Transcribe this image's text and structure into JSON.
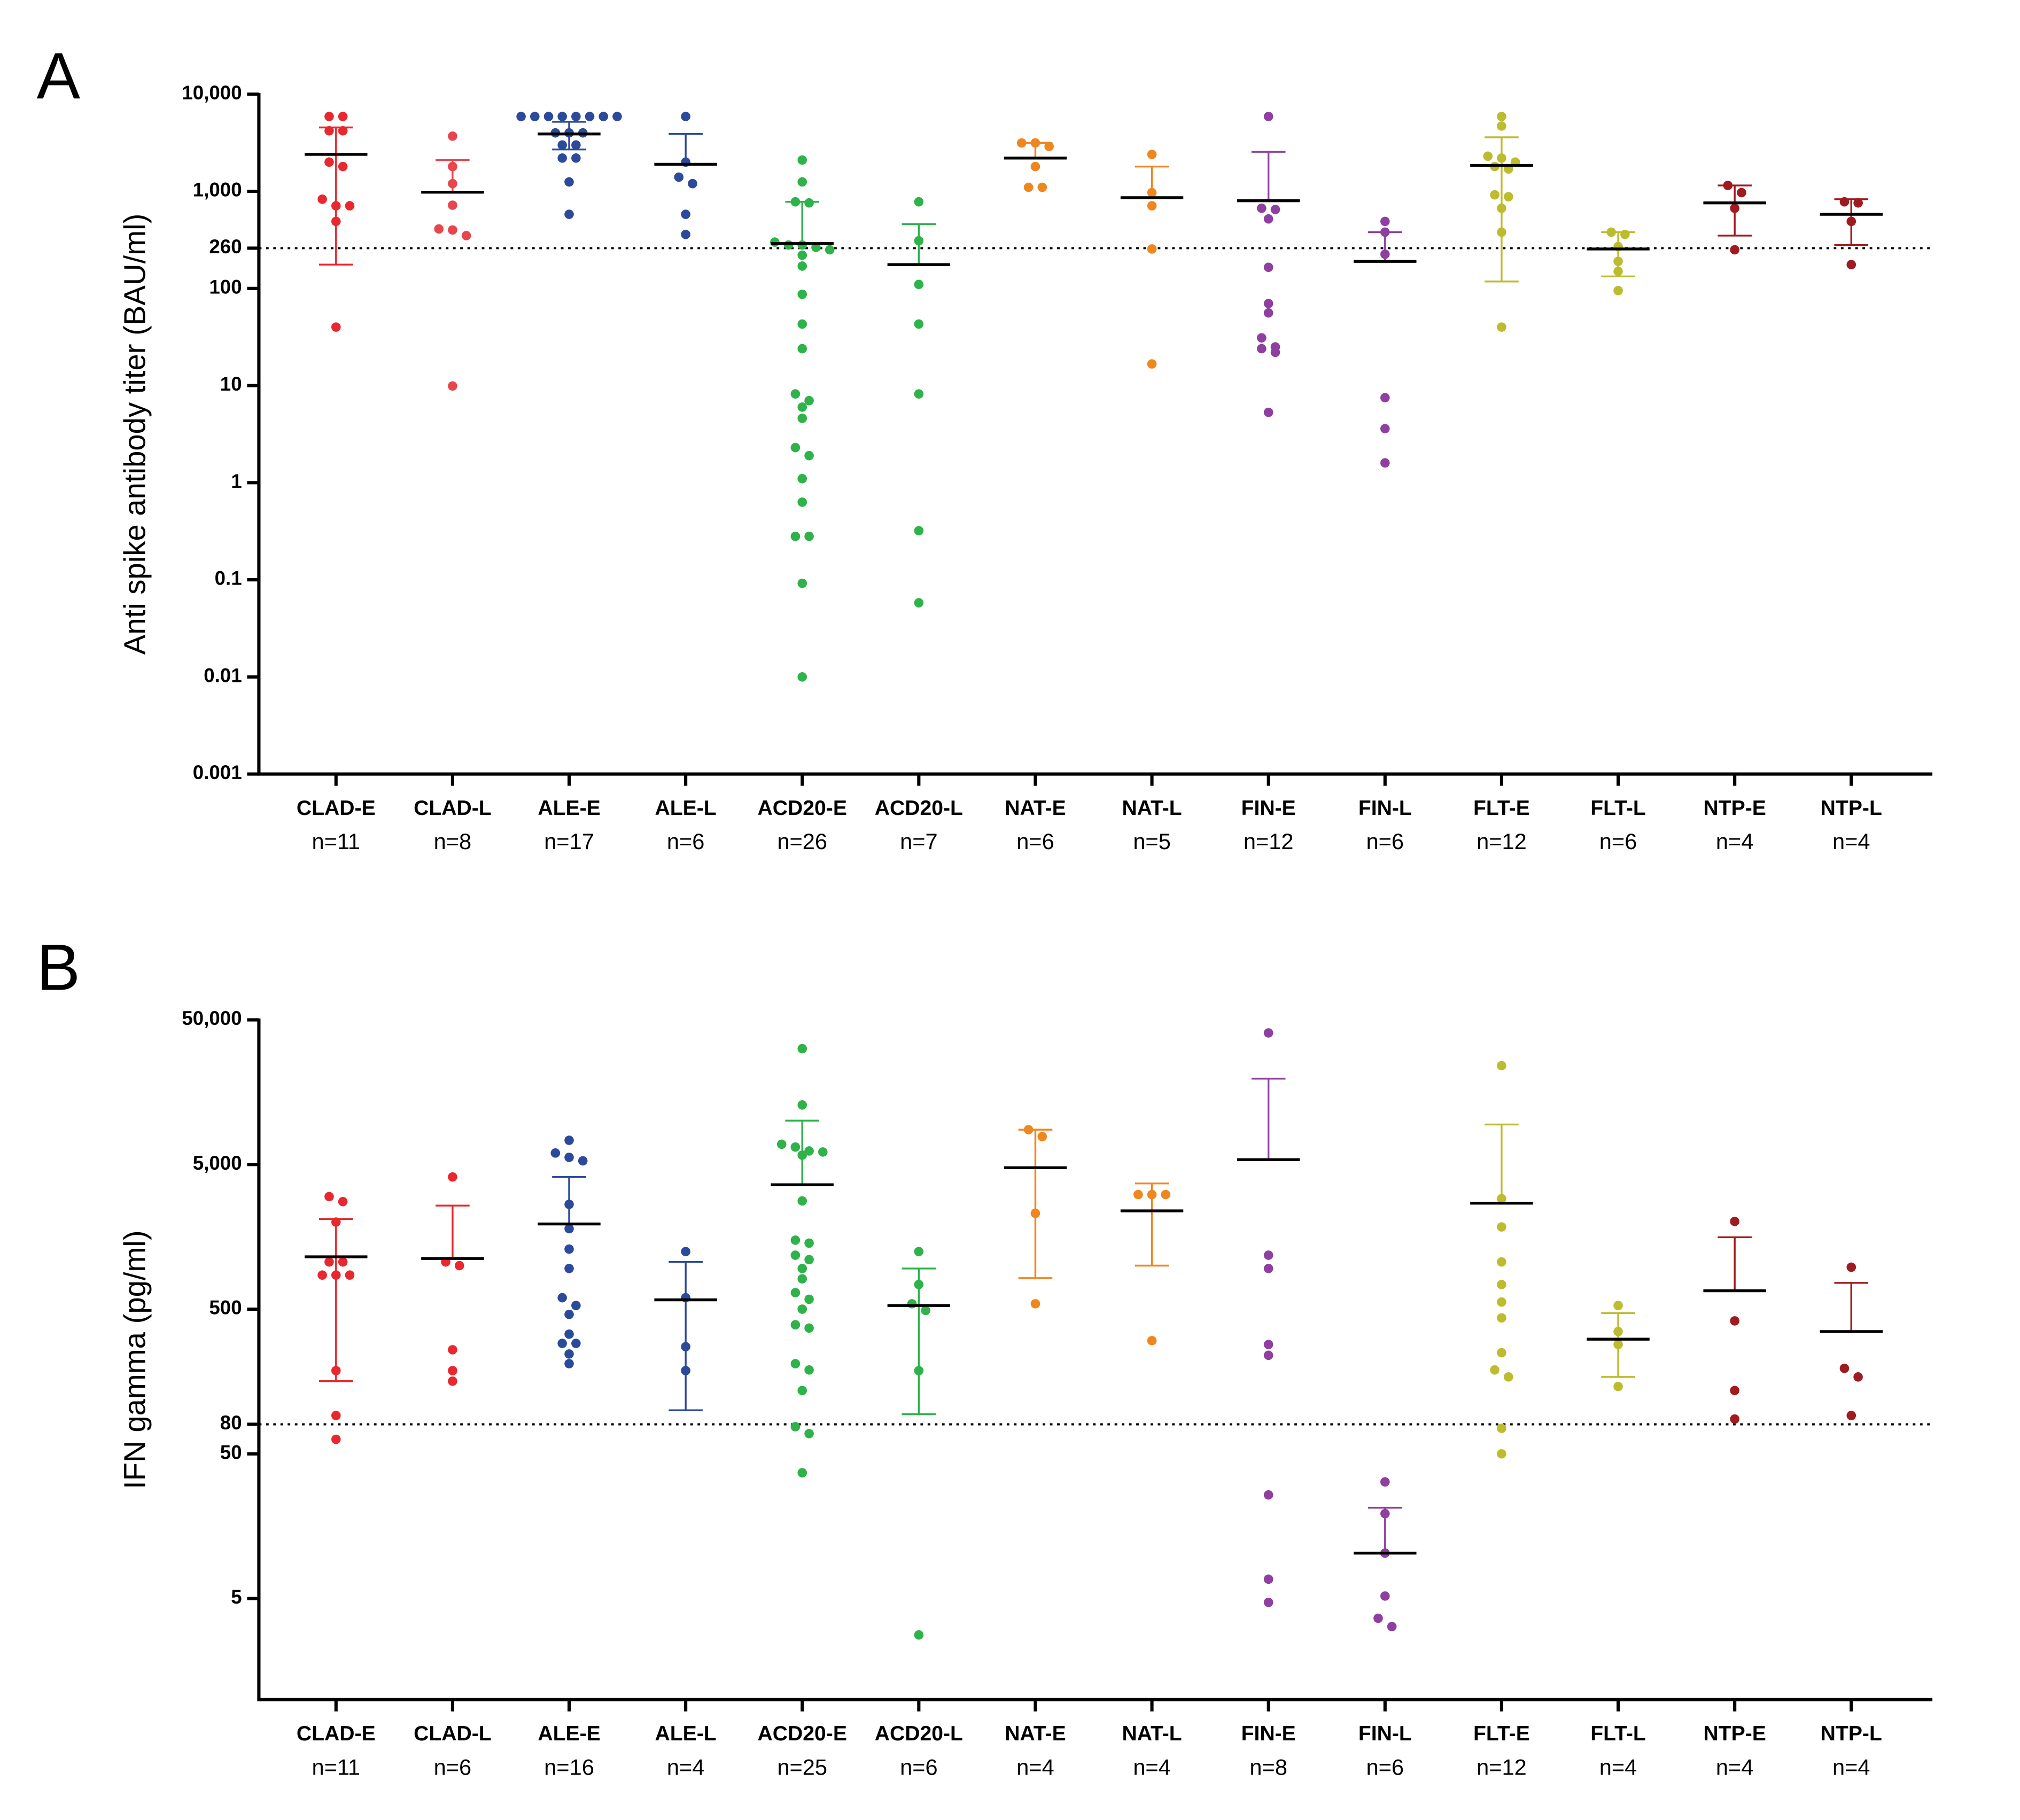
{
  "chart_data": [
    {
      "type": "dot_plot",
      "panel_label": "A",
      "ylabel": "Anti spike antibody titer (BAU/ml)",
      "yscale": "log",
      "ylim": [
        0.001,
        10000
      ],
      "yticks": [
        0.001,
        0.01,
        0.1,
        1,
        10,
        100,
        260,
        {
          "value": 1000,
          "label": "1,000"
        },
        {
          "value": 10000,
          "label": "10,000"
        }
      ],
      "reference_line": 260,
      "series": [
        {
          "name": "CLAD-E",
          "n_label": "n=11",
          "color": "#e8282e",
          "values": [
            5900,
            5900,
            4200,
            4200,
            2000,
            1800,
            830,
            710,
            710,
            490,
            40
          ],
          "mean": 2400,
          "error_upper": 4550,
          "error_lower": 176
        },
        {
          "name": "CLAD-L",
          "n_label": "n=8",
          "color": "#e8464c",
          "values": [
            3700,
            1800,
            1200,
            720,
            410,
            400,
            350,
            9.9
          ],
          "mean": 980,
          "error_upper": 2100,
          "error_lower": null
        },
        {
          "name": "ALE-E",
          "n_label": "n=17",
          "color": "#2c4a9c",
          "values": [
            5900,
            5900,
            5900,
            5900,
            5900,
            5900,
            5900,
            5900,
            4000,
            4000,
            4000,
            3000,
            3000,
            2200,
            2200,
            1250,
            580
          ],
          "mean": 3900,
          "error_upper": 5200,
          "error_lower": 2700
        },
        {
          "name": "ALE-L",
          "n_label": "n=6",
          "color": "#2c4a9c",
          "values": [
            5900,
            2000,
            1400,
            1200,
            580,
            360
          ],
          "mean": 1900,
          "error_upper": 3900,
          "error_lower": null
        },
        {
          "name": "ACD20-E",
          "n_label": "n=26",
          "color": "#2eb34a",
          "values": [
            2100,
            1250,
            780,
            760,
            300,
            280,
            280,
            265,
            250,
            220,
            170,
            87,
            43,
            24,
            8.2,
            7.0,
            6.0,
            4.6,
            2.3,
            1.9,
            1.1,
            0.63,
            0.28,
            0.28,
            0.092,
            0.01
          ],
          "mean": 290,
          "error_upper": 780,
          "error_lower": null
        },
        {
          "name": "ACD20-L",
          "n_label": "n=7",
          "color": "#2eb34a",
          "values": [
            780,
            310,
            110,
            43,
            8.2,
            0.32,
            0.058
          ],
          "mean": 176,
          "error_upper": 460,
          "error_lower": null
        },
        {
          "name": "NAT-E",
          "n_label": "n=6",
          "color": "#f0861e",
          "values": [
            3150,
            3150,
            2900,
            1800,
            1100,
            1100
          ],
          "mean": 2200,
          "error_upper": 3150,
          "error_lower": null
        },
        {
          "name": "NAT-L",
          "n_label": "n=5",
          "color": "#f0861e",
          "values": [
            2400,
            970,
            710,
            255,
            16.7
          ],
          "mean": 860,
          "error_upper": 1800,
          "error_lower": null
        },
        {
          "name": "FIN-E",
          "n_label": "n=12",
          "color": "#8e3fa0",
          "values": [
            5900,
            670,
            650,
            520,
            165,
            70,
            56,
            31,
            25,
            24,
            22,
            5.3
          ],
          "mean": 800,
          "error_upper": 2550,
          "error_lower": null
        },
        {
          "name": "FIN-L",
          "n_label": "n=6",
          "color": "#8e3fa0",
          "values": [
            490,
            380,
            225,
            7.5,
            3.6,
            1.6
          ],
          "mean": 190,
          "error_upper": 380,
          "error_lower": null
        },
        {
          "name": "FLT-E",
          "n_label": "n=12",
          "color": "#bcbc2e",
          "values": [
            5900,
            4700,
            2300,
            2200,
            2000,
            1800,
            1700,
            920,
            880,
            670,
            380,
            40
          ],
          "mean": 1850,
          "error_upper": 3600,
          "error_lower": 118
        },
        {
          "name": "FLT-L",
          "n_label": "n=6",
          "color": "#bcbc2e",
          "values": [
            380,
            360,
            270,
            190,
            150,
            95
          ],
          "mean": 255,
          "error_upper": 380,
          "error_lower": 133
        },
        {
          "name": "NTP-E",
          "n_label": "n=4",
          "color": "#a01b1f",
          "values": [
            1150,
            970,
            670,
            250
          ],
          "mean": 760,
          "error_upper": 1150,
          "error_lower": 350
        },
        {
          "name": "NTP-L",
          "n_label": "n=4",
          "color": "#a01b1f",
          "values": [
            780,
            760,
            490,
            176
          ],
          "mean": 580,
          "error_upper": 830,
          "error_lower": 280
        }
      ]
    },
    {
      "type": "dot_plot",
      "panel_label": "B",
      "ylabel": "IFN gamma (pg/ml)",
      "yscale": "log",
      "ylim": [
        1,
        50000
      ],
      "yticks": [
        5,
        50,
        80,
        500,
        {
          "value": 5000,
          "label": "5,000"
        },
        {
          "value": 50000,
          "label": "50,000"
        }
      ],
      "reference_line": 80,
      "series": [
        {
          "name": "CLAD-E",
          "n_label": "n=11",
          "color": "#e8282e",
          "values": [
            3000,
            2770,
            2000,
            1060,
            1060,
            860,
            860,
            860,
            188,
            92,
            63
          ],
          "mean": 1150,
          "error_upper": 2100,
          "error_lower": 159
        },
        {
          "name": "CLAD-L",
          "n_label": "n=6",
          "color": "#e8282e",
          "values": [
            4100,
            1060,
            1000,
            262,
            188,
            159
          ],
          "mean": 1120,
          "error_upper": 2600,
          "error_lower": null
        },
        {
          "name": "ALE-E",
          "n_label": "n=16",
          "color": "#2c4a9c",
          "values": [
            7350,
            6000,
            5600,
            5300,
            2650,
            1800,
            1300,
            955,
            600,
            530,
            460,
            336,
            290,
            290,
            245,
            210
          ],
          "mean": 1940,
          "error_upper": 4100,
          "error_lower": null
        },
        {
          "name": "ALE-L",
          "n_label": "n=4",
          "color": "#2c4a9c",
          "values": [
            1250,
            600,
            275,
            188
          ],
          "mean": 580,
          "error_upper": 1060,
          "error_lower": 100
        },
        {
          "name": "ACD20-E",
          "n_label": "n=25",
          "color": "#2eb34a",
          "values": [
            31600,
            12900,
            6900,
            6600,
            6200,
            6100,
            5800,
            2800,
            1500,
            1430,
            1180,
            1100,
            955,
            810,
            650,
            585,
            500,
            390,
            370,
            210,
            190,
            137,
            77,
            69,
            37
          ],
          "mean": 3620,
          "error_upper": 10050,
          "error_lower": null
        },
        {
          "name": "ACD20-L",
          "n_label": "n=6",
          "color": "#2eb34a",
          "values": [
            1250,
            740,
            545,
            490,
            188,
            2.8
          ],
          "mean": 530,
          "error_upper": 955,
          "error_lower": 94
        },
        {
          "name": "NAT-E",
          "n_label": "n=4",
          "color": "#f0861e",
          "values": [
            8700,
            7800,
            2300,
            545
          ],
          "mean": 4750,
          "error_upper": 8700,
          "error_lower": 820
        },
        {
          "name": "NAT-L",
          "n_label": "n=4",
          "color": "#f0861e",
          "values": [
            3100,
            3100,
            3100,
            303
          ],
          "mean": 2390,
          "error_upper": 3700,
          "error_lower": 1000
        },
        {
          "name": "FIN-E",
          "n_label": "n=8",
          "color": "#8e3fa0",
          "values": [
            40600,
            1180,
            955,
            285,
            240,
            26,
            6.8,
            4.7
          ],
          "mean": 5400,
          "error_upper": 19600,
          "error_lower": null
        },
        {
          "name": "FIN-L",
          "n_label": "n=6",
          "color": "#8e3fa0",
          "values": [
            32,
            19.3,
            10.3,
            5.2,
            3.65,
            3.2
          ],
          "mean": 10.3,
          "error_upper": 21.2,
          "error_lower": null
        },
        {
          "name": "FLT-E",
          "n_label": "n=12",
          "color": "#bcbc2e",
          "values": [
            24100,
            2900,
            1850,
            1060,
            740,
            560,
            435,
            250,
            190,
            170,
            75,
            50
          ],
          "mean": 2700,
          "error_upper": 9450,
          "error_lower": null
        },
        {
          "name": "FLT-L",
          "n_label": "n=4",
          "color": "#bcbc2e",
          "values": [
            530,
            350,
            285,
            146
          ],
          "mean": 310,
          "error_upper": 470,
          "error_lower": 170
        },
        {
          "name": "NTP-E",
          "n_label": "n=4",
          "color": "#a01b1f",
          "values": [
            2020,
            415,
            137,
            87
          ],
          "mean": 670,
          "error_upper": 1570,
          "error_lower": null
        },
        {
          "name": "NTP-L",
          "n_label": "n=4",
          "color": "#a01b1f",
          "values": [
            975,
            195,
            170,
            92
          ],
          "mean": 350,
          "error_upper": 760,
          "error_lower": null
        }
      ]
    }
  ]
}
